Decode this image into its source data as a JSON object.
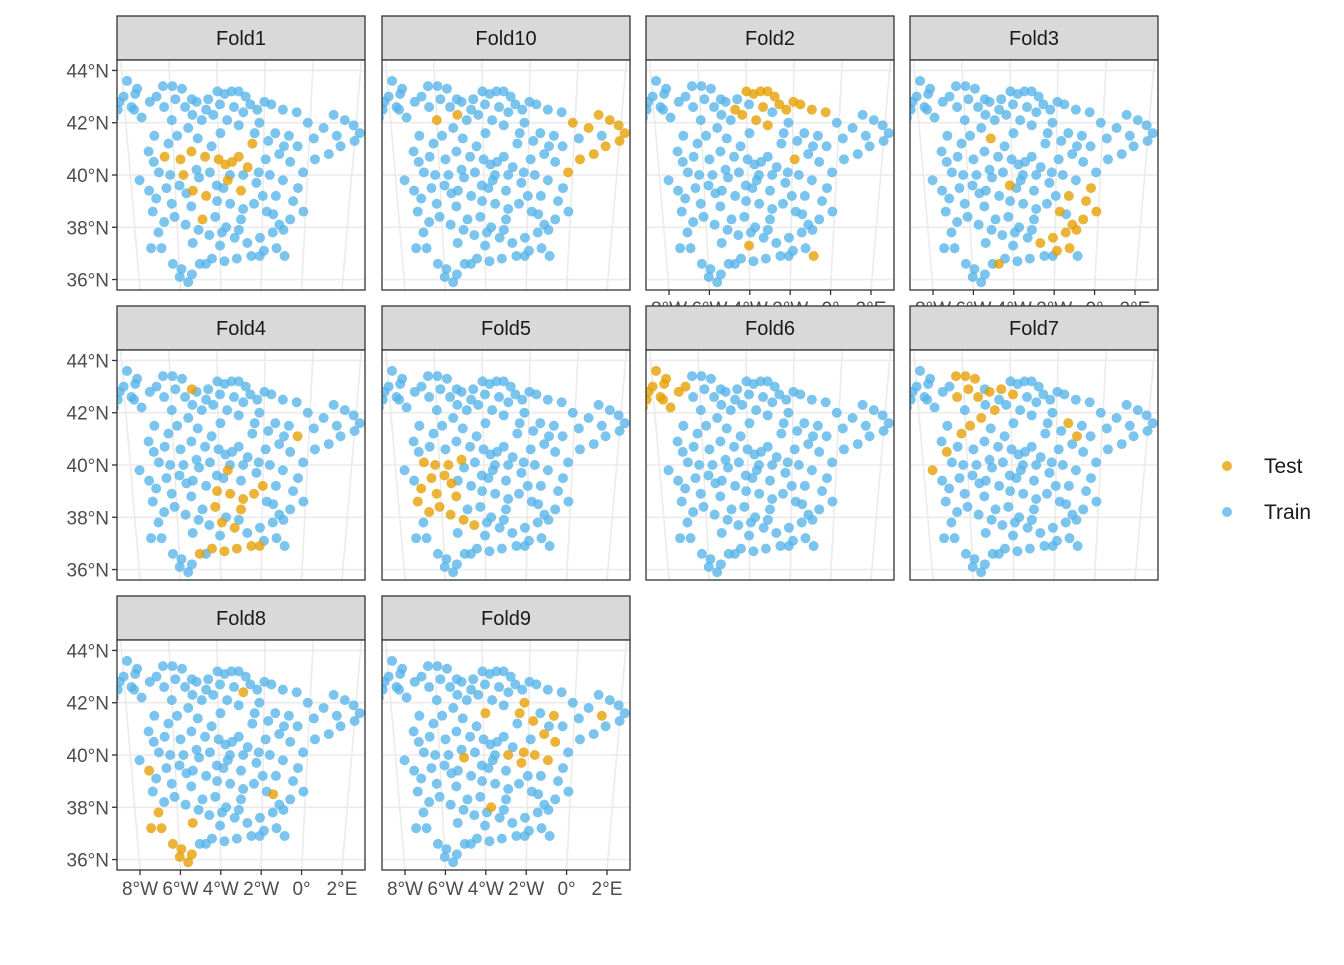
{
  "chart_data": {
    "type": "scatter",
    "facet_type": "faceted map scatter (spatial cross-validation folds)",
    "panels": [
      "Fold1",
      "Fold10",
      "Fold2",
      "Fold3",
      "Fold4",
      "Fold5",
      "Fold6",
      "Fold7",
      "Fold8",
      "Fold9"
    ],
    "x_ticks": [
      "8°W",
      "6°W",
      "4°W",
      "2°W",
      "0°",
      "2°E"
    ],
    "y_ticks": [
      "44°N",
      "42°N",
      "40°N",
      "38°N",
      "36°N"
    ],
    "xlim": [
      -8.6,
      2.6
    ],
    "ylim": [
      35.6,
      44.4
    ],
    "grid": true,
    "legend_position": "right",
    "legend": [
      {
        "name": "Test",
        "color": "#E69F00"
      },
      {
        "name": "Train",
        "color": "#56B4E9"
      }
    ],
    "colors": {
      "test": "#E69F00",
      "train": "#56B4E9"
    },
    "points": [
      [
        -7.8,
        43.6
      ],
      [
        -7.4,
        43.3
      ],
      [
        -8.0,
        43.0
      ],
      [
        -8.3,
        42.5
      ],
      [
        -8.5,
        42.2
      ],
      [
        -8.2,
        42.8
      ],
      [
        -7.7,
        42.6
      ],
      [
        -7.3,
        42.2
      ],
      [
        -6.9,
        42.8
      ],
      [
        -6.3,
        43.4
      ],
      [
        -5.9,
        43.4
      ],
      [
        -5.5,
        43.3
      ],
      [
        -5.8,
        42.9
      ],
      [
        -6.3,
        42.6
      ],
      [
        -5.4,
        42.6
      ],
      [
        -4.9,
        42.8
      ],
      [
        -4.4,
        42.9
      ],
      [
        -4.0,
        43.2
      ],
      [
        -3.7,
        43.1
      ],
      [
        -3.4,
        43.2
      ],
      [
        -3.1,
        43.2
      ],
      [
        -2.8,
        43.0
      ],
      [
        -2.6,
        42.7
      ],
      [
        -2.3,
        42.5
      ],
      [
        -1.7,
        42.7
      ],
      [
        -1.2,
        42.5
      ],
      [
        -0.6,
        42.4
      ],
      [
        -0.1,
        42.0
      ],
      [
        0.6,
        41.8
      ],
      [
        1.0,
        42.3
      ],
      [
        1.5,
        42.1
      ],
      [
        1.9,
        41.9
      ],
      [
        2.2,
        41.6
      ],
      [
        2.0,
        41.3
      ],
      [
        1.4,
        41.1
      ],
      [
        0.9,
        40.8
      ],
      [
        0.3,
        40.6
      ],
      [
        -0.2,
        40.1
      ],
      [
        -0.8,
        40.5
      ],
      [
        -1.3,
        40.8
      ],
      [
        -1.8,
        41.3
      ],
      [
        -2.4,
        41.6
      ],
      [
        -3.1,
        41.9
      ],
      [
        -3.6,
        42.1
      ],
      [
        -4.2,
        42.3
      ],
      [
        -4.7,
        42.1
      ],
      [
        -5.3,
        41.8
      ],
      [
        -5.8,
        41.5
      ],
      [
        -6.2,
        41.2
      ],
      [
        -6.8,
        41.5
      ],
      [
        -7.1,
        40.9
      ],
      [
        -6.4,
        40.7
      ],
      [
        -5.7,
        40.6
      ],
      [
        -5.2,
        40.9
      ],
      [
        -4.6,
        40.7
      ],
      [
        -4.0,
        40.6
      ],
      [
        -3.7,
        40.4
      ],
      [
        -3.4,
        40.5
      ],
      [
        -3.1,
        40.7
      ],
      [
        -2.7,
        40.3
      ],
      [
        -2.2,
        40.1
      ],
      [
        -1.7,
        40.0
      ],
      [
        -1.1,
        39.8
      ],
      [
        -0.4,
        39.5
      ],
      [
        -0.6,
        39.0
      ],
      [
        -0.1,
        38.6
      ],
      [
        -0.7,
        38.3
      ],
      [
        -1.2,
        38.1
      ],
      [
        -1.8,
        38.6
      ],
      [
        -2.4,
        38.9
      ],
      [
        -2.9,
        38.7
      ],
      [
        -3.5,
        38.9
      ],
      [
        -4.1,
        39.0
      ],
      [
        -4.6,
        39.2
      ],
      [
        -5.2,
        39.4
      ],
      [
        -5.8,
        39.6
      ],
      [
        -6.4,
        39.5
      ],
      [
        -6.9,
        39.1
      ],
      [
        -7.1,
        38.6
      ],
      [
        -6.6,
        38.2
      ],
      [
        -6.1,
        38.4
      ],
      [
        -5.6,
        38.1
      ],
      [
        -5.0,
        37.9
      ],
      [
        -4.5,
        37.7
      ],
      [
        -3.9,
        37.8
      ],
      [
        -3.3,
        37.6
      ],
      [
        -2.7,
        37.4
      ],
      [
        -2.1,
        37.6
      ],
      [
        -1.5,
        37.8
      ],
      [
        -1.0,
        37.9
      ],
      [
        -1.3,
        37.2
      ],
      [
        -1.9,
        37.1
      ],
      [
        -2.5,
        36.9
      ],
      [
        -3.2,
        36.8
      ],
      [
        -3.8,
        36.7
      ],
      [
        -4.4,
        36.8
      ],
      [
        -5.0,
        36.6
      ],
      [
        -5.4,
        36.2
      ],
      [
        -5.9,
        36.4
      ],
      [
        -6.3,
        36.6
      ],
      [
        -6.0,
        36.1
      ],
      [
        -5.6,
        35.9
      ],
      [
        -6.8,
        37.2
      ],
      [
        -7.3,
        37.2
      ],
      [
        -5.3,
        37.4
      ],
      [
        -4.8,
        38.3
      ],
      [
        -3.0,
        39.4
      ],
      [
        -3.6,
        39.8
      ],
      [
        -4.4,
        40.1
      ],
      [
        -5.0,
        40.2
      ],
      [
        -5.6,
        40.0
      ],
      [
        -6.2,
        40.0
      ],
      [
        -6.7,
        40.1
      ],
      [
        -2.5,
        41.2
      ],
      [
        -1.9,
        40.6
      ],
      [
        -0.9,
        41.5
      ],
      [
        -4.9,
        41.4
      ],
      [
        -3.9,
        41.6
      ],
      [
        -2.2,
        42.0
      ],
      [
        -0.5,
        41.1
      ],
      [
        -3.5,
        40.0
      ],
      [
        -3.8,
        39.5
      ],
      [
        -2.3,
        39.7
      ],
      [
        -4.9,
        39.9
      ],
      [
        -1.4,
        39.2
      ],
      [
        -3.0,
        38.3
      ],
      [
        -4.2,
        38.4
      ],
      [
        -5.3,
        38.8
      ],
      [
        -0.9,
        36.9
      ],
      [
        -4.0,
        37.3
      ],
      [
        -2.9,
        42.4
      ],
      [
        -3.9,
        42.7
      ],
      [
        -5.1,
        42.3
      ],
      [
        -6.0,
        42.1
      ],
      [
        -7.5,
        43.1
      ],
      [
        -6.6,
        43.0
      ],
      [
        -1.5,
        41.6
      ],
      [
        0.2,
        41.4
      ],
      [
        1.2,
        41.5
      ],
      [
        -2.0,
        42.8
      ],
      [
        -3.3,
        42.6
      ],
      [
        -4.5,
        42.5
      ],
      [
        -6.9,
        40.5
      ],
      [
        -7.6,
        39.8
      ],
      [
        -7.2,
        39.4
      ],
      [
        -3.7,
        38.0
      ],
      [
        -2.0,
        39.2
      ],
      [
        -6.9,
        37.8
      ],
      [
        -4.7,
        36.6
      ],
      [
        -2.1,
        36.9
      ],
      [
        -6.2,
        38.9
      ],
      [
        -5.5,
        39.3
      ],
      [
        -2.9,
        40.0
      ],
      [
        -1.1,
        41.1
      ],
      [
        -5.1,
        42.9
      ],
      [
        -7.6,
        42.5
      ],
      [
        -3.1,
        37.9
      ],
      [
        -4.1,
        39.6
      ],
      [
        -1.5,
        38.5
      ],
      [
        -4.3,
        41.1
      ]
    ],
    "folds": [
      {
        "name": "Fold1",
        "test_point_indices": [
          51,
          52,
          53,
          54,
          55,
          56,
          57,
          58,
          59,
          73,
          74,
          105,
          106,
          107,
          110,
          113
        ]
      },
      {
        "name": "Fold10",
        "test_point_indices": [
          27,
          28,
          29,
          30,
          31,
          32,
          33,
          34,
          35,
          36,
          37,
          132,
          133
        ]
      },
      {
        "name": "Fold2",
        "test_point_indices": [
          17,
          18,
          19,
          20,
          21,
          22,
          23,
          24,
          25,
          26,
          42,
          43,
          44,
          114,
          128,
          129,
          139,
          140,
          141
        ]
      },
      {
        "name": "Fold3",
        "test_point_indices": [
          63,
          64,
          65,
          66,
          67,
          68,
          86,
          87,
          88,
          89,
          90,
          91,
          116,
          124,
          148,
          157
        ]
      },
      {
        "name": "Fold4",
        "test_point_indices": [
          69,
          70,
          71,
          72,
          84,
          85,
          92,
          93,
          94,
          95,
          96,
          107,
          119,
          125,
          126,
          146,
          149,
          154
        ]
      },
      {
        "name": "Fold5",
        "test_point_indices": [
          75,
          76,
          77,
          78,
          79,
          80,
          81,
          82,
          83,
          109,
          110,
          111,
          112,
          127,
          150,
          151
        ]
      },
      {
        "name": "Fold6",
        "test_point_indices": [
          0,
          1,
          2,
          3,
          4,
          5,
          6,
          7,
          8,
          134,
          135,
          155
        ]
      },
      {
        "name": "Fold7",
        "test_point_indices": [
          9,
          10,
          11,
          12,
          13,
          14,
          15,
          16,
          45,
          46,
          47,
          48,
          131,
          136,
          142,
          143,
          153
        ]
      },
      {
        "name": "Fold8",
        "test_point_indices": [
          97,
          98,
          99,
          100,
          101,
          102,
          103,
          104,
          130,
          147,
          144,
          158
        ]
      },
      {
        "name": "Fold9",
        "test_point_indices": [
          38,
          39,
          40,
          41,
          60,
          61,
          62,
          115,
          117,
          118,
          122,
          123,
          138,
          145,
          152
        ]
      }
    ]
  }
}
